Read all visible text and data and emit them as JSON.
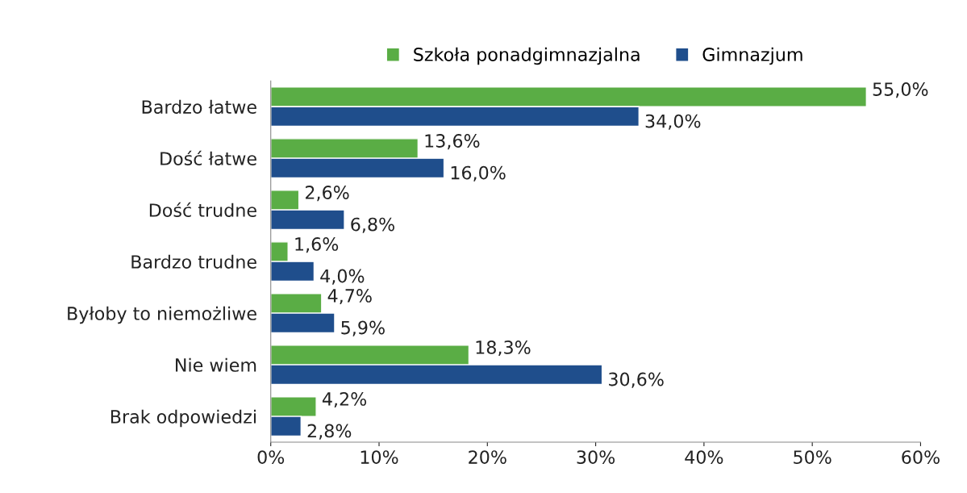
{
  "chart_data": {
    "type": "bar",
    "orientation": "horizontal",
    "categories": [
      "Bardzo łatwe",
      "Dość łatwe",
      "Dość trudne",
      "Bardzo trudne",
      "Byłoby to niemożliwe",
      "Nie wiem",
      "Brak odpowiedzi"
    ],
    "series": [
      {
        "name": "Szkoła ponadgimnazjalna",
        "color": "#5aad45",
        "values": [
          55.0,
          13.6,
          2.6,
          1.6,
          4.7,
          18.3,
          4.2
        ],
        "value_labels": [
          "55,0%",
          "13,6%",
          "2,6%",
          "1,6%",
          "4,7%",
          "18,3%",
          "4,2%"
        ]
      },
      {
        "name": "Gimnazjum",
        "color": "#1f4e8c",
        "values": [
          34.0,
          16.0,
          6.8,
          4.0,
          5.9,
          30.6,
          2.8
        ],
        "value_labels": [
          "34,0%",
          "16,0%",
          "6,8%",
          "4,0%",
          "5,9%",
          "30,6%",
          "2,8%"
        ]
      }
    ],
    "xlim": [
      0,
      60
    ],
    "xticks": [
      {
        "value": 0,
        "label": "0%"
      },
      {
        "value": 10,
        "label": "10%"
      },
      {
        "value": 20,
        "label": "20%"
      },
      {
        "value": 30,
        "label": "30%"
      },
      {
        "value": 40,
        "label": "40%"
      },
      {
        "value": 50,
        "label": "50%"
      },
      {
        "value": 60,
        "label": "60%"
      }
    ],
    "grid": false,
    "legend": "top"
  }
}
